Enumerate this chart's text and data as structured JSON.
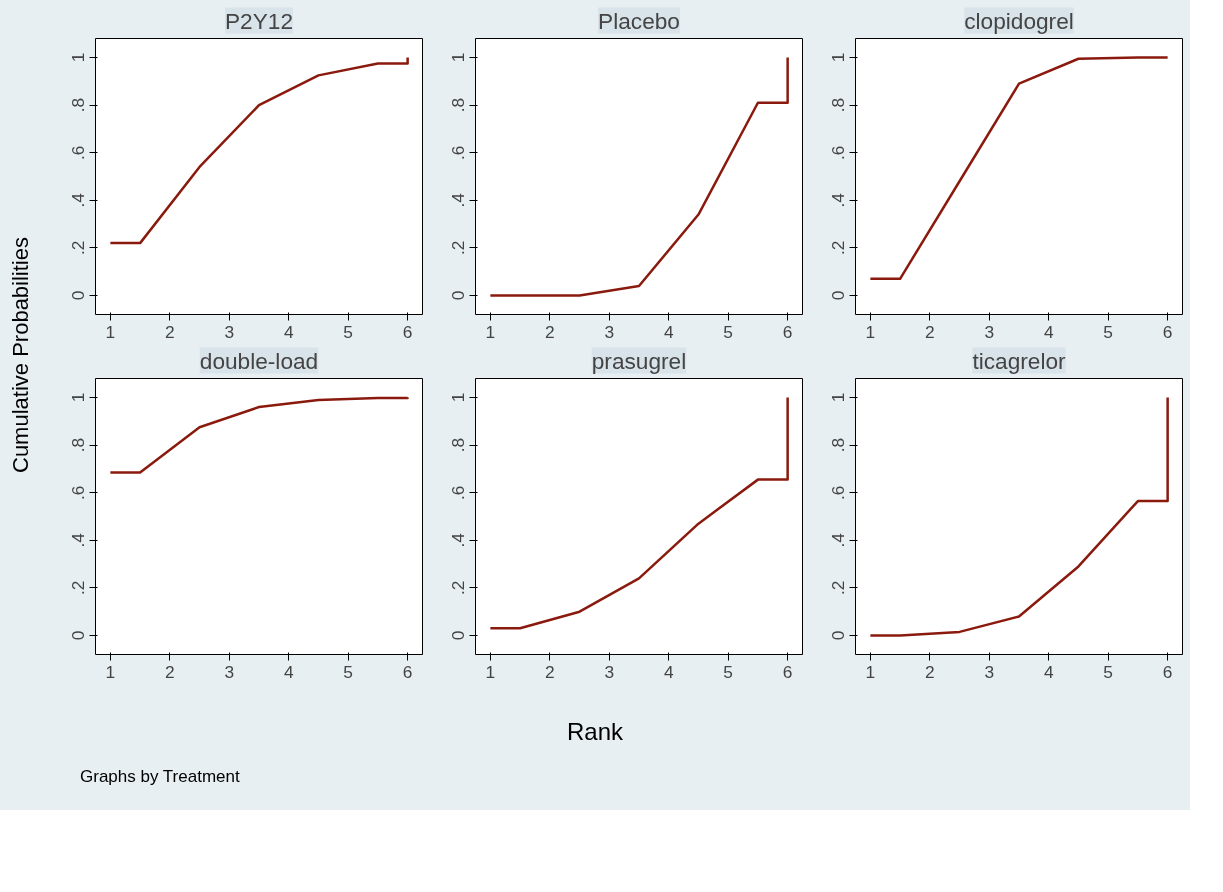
{
  "chart_data": [
    {
      "type": "line",
      "title": "P2Y12",
      "ylabel": "Cumulative Probabilities",
      "xlim": [
        0.75,
        6.25
      ],
      "ylim": [
        -0.08,
        1.08
      ],
      "xticks": [
        1,
        2,
        3,
        4,
        5,
        6
      ],
      "yticks": [
        0,
        {
          "value": 0.2,
          "label": ".2"
        },
        {
          "value": 0.4,
          "label": ".4"
        },
        {
          "value": 0.6,
          "label": ".6"
        },
        {
          "value": 0.8,
          "label": ".8"
        },
        1
      ],
      "grid": false,
      "marker": "none",
      "line_style": "solid",
      "series": [
        {
          "color": "#8b1a0e",
          "x": [
            1,
            1.5,
            2.5,
            3.5,
            4.5,
            5.5,
            6,
            6
          ],
          "values": [
            0.22,
            0.22,
            0.54,
            0.8,
            0.925,
            0.975,
            0.975,
            1
          ]
        }
      ]
    },
    {
      "type": "line",
      "title": "Placebo",
      "xlim": [
        0.75,
        6.25
      ],
      "ylim": [
        -0.08,
        1.08
      ],
      "xticks": [
        1,
        2,
        3,
        4,
        5,
        6
      ],
      "yticks": [
        0,
        {
          "value": 0.2,
          "label": ".2"
        },
        {
          "value": 0.4,
          "label": ".4"
        },
        {
          "value": 0.6,
          "label": ".6"
        },
        {
          "value": 0.8,
          "label": ".8"
        },
        1
      ],
      "grid": false,
      "marker": "none",
      "line_style": "solid",
      "series": [
        {
          "color": "#8b1a0e",
          "x": [
            1,
            1.5,
            2.5,
            3.5,
            4.5,
            5.5,
            6,
            6
          ],
          "values": [
            0,
            0,
            0,
            0.04,
            0.34,
            0.81,
            0.81,
            1
          ]
        }
      ]
    },
    {
      "type": "line",
      "title": "clopidogrel",
      "xlim": [
        0.75,
        6.25
      ],
      "ylim": [
        -0.08,
        1.08
      ],
      "xticks": [
        1,
        2,
        3,
        4,
        5,
        6
      ],
      "yticks": [
        0,
        {
          "value": 0.2,
          "label": ".2"
        },
        {
          "value": 0.4,
          "label": ".4"
        },
        {
          "value": 0.6,
          "label": ".6"
        },
        {
          "value": 0.8,
          "label": ".8"
        },
        1
      ],
      "grid": false,
      "marker": "none",
      "line_style": "solid",
      "series": [
        {
          "color": "#8b1a0e",
          "x": [
            1,
            1.5,
            2.5,
            3.5,
            4.5,
            5.5,
            6
          ],
          "values": [
            0.07,
            0.07,
            0.48,
            0.89,
            0.995,
            1,
            1
          ]
        }
      ]
    },
    {
      "type": "line",
      "title": "double-load",
      "annotations": [
        "Graphs by Treatment"
      ],
      "xlim": [
        0.75,
        6.25
      ],
      "ylim": [
        -0.08,
        1.08
      ],
      "xticks": [
        1,
        2,
        3,
        4,
        5,
        6
      ],
      "yticks": [
        0,
        {
          "value": 0.2,
          "label": ".2"
        },
        {
          "value": 0.4,
          "label": ".4"
        },
        {
          "value": 0.6,
          "label": ".6"
        },
        {
          "value": 0.8,
          "label": ".8"
        },
        1
      ],
      "grid": false,
      "marker": "none",
      "line_style": "solid",
      "series": [
        {
          "color": "#8b1a0e",
          "x": [
            1,
            1.5,
            2.5,
            3.5,
            4.5,
            5.5,
            6,
            6
          ],
          "values": [
            0.685,
            0.685,
            0.875,
            0.96,
            0.99,
            0.998,
            0.998,
            1
          ]
        }
      ]
    },
    {
      "type": "line",
      "title": "prasugrel",
      "xlabel": "Rank",
      "xlim": [
        0.75,
        6.25
      ],
      "ylim": [
        -0.08,
        1.08
      ],
      "xticks": [
        1,
        2,
        3,
        4,
        5,
        6
      ],
      "yticks": [
        0,
        {
          "value": 0.2,
          "label": ".2"
        },
        {
          "value": 0.4,
          "label": ".4"
        },
        {
          "value": 0.6,
          "label": ".6"
        },
        {
          "value": 0.8,
          "label": ".8"
        },
        1
      ],
      "grid": false,
      "marker": "none",
      "line_style": "solid",
      "series": [
        {
          "color": "#8b1a0e",
          "x": [
            1,
            1.5,
            2.5,
            3.5,
            4.5,
            5.5,
            6,
            6
          ],
          "values": [
            0.03,
            0.03,
            0.1,
            0.24,
            0.47,
            0.655,
            0.655,
            1
          ]
        }
      ]
    },
    {
      "type": "line",
      "title": "ticagrelor",
      "xlim": [
        0.75,
        6.25
      ],
      "ylim": [
        -0.08,
        1.08
      ],
      "xticks": [
        1,
        2,
        3,
        4,
        5,
        6
      ],
      "yticks": [
        0,
        {
          "value": 0.2,
          "label": ".2"
        },
        {
          "value": 0.4,
          "label": ".4"
        },
        {
          "value": 0.6,
          "label": ".6"
        },
        {
          "value": 0.8,
          "label": ".8"
        },
        1
      ],
      "grid": false,
      "marker": "none",
      "line_style": "solid",
      "series": [
        {
          "color": "#8b1a0e",
          "x": [
            1,
            1.5,
            2.5,
            3.5,
            4.5,
            5.5,
            6,
            6
          ],
          "values": [
            0,
            0,
            0.015,
            0.08,
            0.29,
            0.565,
            0.565,
            1
          ]
        }
      ]
    }
  ]
}
